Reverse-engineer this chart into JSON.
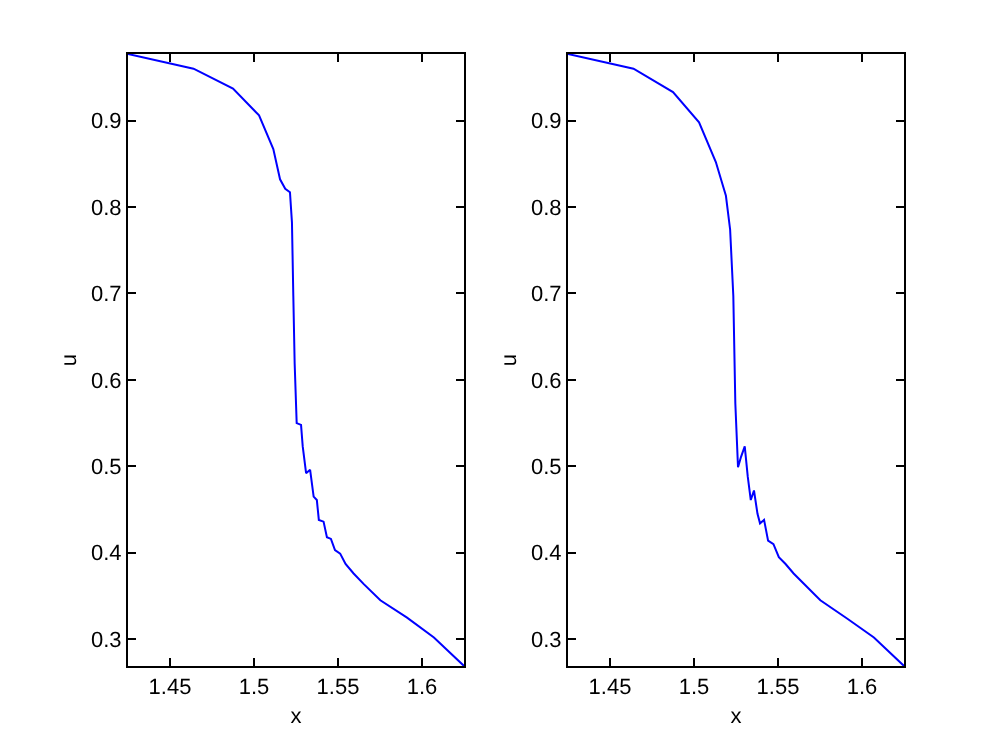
{
  "chart_data": [
    {
      "type": "line",
      "xlabel": "x",
      "ylabel": "u",
      "xlim": [
        1.425,
        1.625
      ],
      "ylim": [
        0.269,
        0.977
      ],
      "xticks": [
        1.45,
        1.5,
        1.55,
        1.6
      ],
      "yticks": [
        0.3,
        0.4,
        0.5,
        0.6,
        0.7,
        0.8,
        0.9
      ],
      "series": [
        {
          "color": "#0000ff",
          "x": [
            1.425,
            1.464,
            1.4875,
            1.503,
            1.5115,
            1.5155,
            1.5186,
            1.5214,
            1.5226,
            1.5234,
            1.5242,
            1.5254,
            1.528,
            1.529,
            1.531,
            1.5334,
            1.5355,
            1.5374,
            1.5386,
            1.5414,
            1.5434,
            1.5458,
            1.5482,
            1.5513,
            1.5545,
            1.5593,
            1.5652,
            1.5752,
            1.5911,
            1.6071,
            1.625
          ],
          "values": [
            0.977,
            0.96,
            0.937,
            0.906,
            0.867,
            0.832,
            0.821,
            0.817,
            0.782,
            0.697,
            0.619,
            0.55,
            0.548,
            0.523,
            0.492,
            0.496,
            0.465,
            0.461,
            0.438,
            0.436,
            0.418,
            0.416,
            0.403,
            0.399,
            0.387,
            0.376,
            0.364,
            0.345,
            0.325,
            0.302,
            0.269
          ]
        }
      ]
    },
    {
      "type": "line",
      "xlabel": "x",
      "ylabel": "u",
      "xlim": [
        1.425,
        1.625
      ],
      "ylim": [
        0.269,
        0.977
      ],
      "xticks": [
        1.45,
        1.5,
        1.55,
        1.6
      ],
      "yticks": [
        0.3,
        0.4,
        0.5,
        0.6,
        0.7,
        0.8,
        0.9
      ],
      "series": [
        {
          "color": "#0000ff",
          "x": [
            1.425,
            1.464,
            1.4875,
            1.503,
            1.513,
            1.519,
            1.5215,
            1.5234,
            1.5246,
            1.5262,
            1.528,
            1.5302,
            1.532,
            1.5338,
            1.5357,
            1.5378,
            1.5393,
            1.5417,
            1.5441,
            1.5473,
            1.5505,
            1.5545,
            1.5593,
            1.5752,
            1.5911,
            1.6071,
            1.625
          ],
          "values": [
            0.977,
            0.96,
            0.933,
            0.898,
            0.852,
            0.813,
            0.774,
            0.697,
            0.573,
            0.499,
            0.511,
            0.523,
            0.488,
            0.461,
            0.472,
            0.445,
            0.434,
            0.438,
            0.414,
            0.41,
            0.395,
            0.387,
            0.376,
            0.345,
            0.324,
            0.302,
            0.269
          ]
        }
      ]
    }
  ]
}
